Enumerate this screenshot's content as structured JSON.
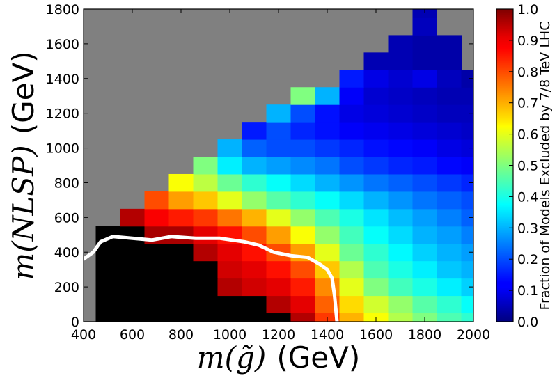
{
  "chart_data": {
    "type": "heatmap",
    "title": "",
    "xlabel": {
      "math": "m(g̃)",
      "unit": "(GeV)"
    },
    "ylabel": {
      "math": "m(NLSP)",
      "unit": "(GeV)"
    },
    "xlim": [
      400,
      2000
    ],
    "ylim": [
      0,
      1800
    ],
    "xticks": [
      "400",
      "600",
      "800",
      "1000",
      "1200",
      "1400",
      "1600",
      "1800",
      "2000"
    ],
    "yticks": [
      "0",
      "200",
      "400",
      "600",
      "800",
      "1000",
      "1200",
      "1400",
      "1600",
      "1800"
    ],
    "background_color": "#808080",
    "colormap": "jet",
    "colorbar": {
      "label": "Fraction of Models Excluded by 7/8 TeV LHC",
      "range": [
        0.0,
        1.0
      ],
      "ticks": [
        "0.0",
        "0.1",
        "0.2",
        "0.3",
        "0.4",
        "0.5",
        "0.6",
        "0.7",
        "0.8",
        "0.9",
        "1.0"
      ]
    },
    "fraction_grid": {
      "description_of_axes": "rows = m(NLSP) 0..1800 step 100, cols = m(g̃) 400..2000 step 100; null = no models",
      "m_nlsp": [
        0,
        100,
        200,
        300,
        400,
        500,
        600,
        700,
        800,
        900,
        1000,
        1100,
        1200,
        1300,
        1400,
        1500,
        1600,
        1700,
        1800
      ],
      "m_gluino": [
        400,
        500,
        600,
        700,
        800,
        900,
        1000,
        1100,
        1200,
        1300,
        1400,
        1500,
        1600,
        1700,
        1800,
        1900,
        2000
      ],
      "values": [
        [
          null,
          1.0,
          1.0,
          1.0,
          1.0,
          1.0,
          1.0,
          1.0,
          1.0,
          0.95,
          0.82,
          0.7,
          0.62,
          0.55,
          0.5,
          0.45,
          0.42
        ],
        [
          null,
          1.0,
          1.0,
          1.0,
          1.0,
          1.0,
          1.0,
          1.0,
          0.95,
          0.9,
          0.78,
          0.66,
          0.58,
          0.52,
          0.46,
          0.42,
          0.38
        ],
        [
          null,
          1.0,
          1.0,
          1.0,
          1.0,
          1.0,
          0.95,
          0.92,
          0.9,
          0.85,
          0.74,
          0.6,
          0.5,
          0.44,
          0.4,
          0.36,
          0.33
        ],
        [
          null,
          1.0,
          1.0,
          1.0,
          1.0,
          1.0,
          0.92,
          0.9,
          0.86,
          0.8,
          0.68,
          0.55,
          0.45,
          0.4,
          0.36,
          0.32,
          0.3
        ],
        [
          null,
          1.0,
          1.0,
          1.0,
          1.0,
          0.95,
          0.9,
          0.86,
          0.8,
          0.72,
          0.6,
          0.48,
          0.42,
          0.37,
          0.33,
          0.3,
          0.28
        ],
        [
          null,
          1.0,
          1.0,
          0.96,
          0.96,
          0.9,
          0.86,
          0.8,
          0.72,
          0.62,
          0.52,
          0.44,
          0.38,
          0.34,
          0.3,
          0.28,
          0.25
        ],
        [
          null,
          null,
          0.95,
          0.88,
          0.85,
          0.82,
          0.76,
          0.7,
          0.6,
          0.52,
          0.45,
          0.4,
          0.35,
          0.31,
          0.28,
          0.25,
          0.22
        ],
        [
          null,
          null,
          null,
          0.8,
          0.72,
          0.68,
          0.6,
          0.52,
          0.46,
          0.42,
          0.38,
          0.34,
          0.3,
          0.27,
          0.24,
          0.22,
          0.2
        ],
        [
          null,
          null,
          null,
          null,
          0.62,
          0.56,
          0.48,
          0.42,
          0.38,
          0.34,
          0.3,
          0.27,
          0.24,
          0.22,
          0.2,
          0.18,
          0.16
        ],
        [
          null,
          null,
          null,
          null,
          null,
          0.5,
          0.36,
          0.3,
          0.28,
          0.26,
          0.24,
          0.2,
          0.18,
          0.16,
          0.15,
          0.13,
          0.12
        ],
        [
          null,
          null,
          null,
          null,
          null,
          null,
          0.3,
          0.22,
          0.2,
          0.2,
          0.18,
          0.16,
          0.14,
          0.13,
          0.12,
          0.1,
          0.09
        ],
        [
          null,
          null,
          null,
          null,
          null,
          null,
          null,
          0.15,
          0.2,
          0.16,
          0.14,
          0.12,
          0.11,
          0.1,
          0.09,
          0.08,
          0.07
        ],
        [
          null,
          null,
          null,
          null,
          null,
          null,
          null,
          null,
          0.3,
          0.2,
          0.14,
          0.1,
          0.09,
          0.08,
          0.07,
          0.06,
          0.06
        ],
        [
          null,
          null,
          null,
          null,
          null,
          null,
          null,
          null,
          null,
          0.5,
          0.3,
          0.12,
          0.08,
          0.07,
          0.06,
          0.05,
          0.05
        ],
        [
          null,
          null,
          null,
          null,
          null,
          null,
          null,
          null,
          null,
          null,
          null,
          0.15,
          0.1,
          0.08,
          0.1,
          0.06,
          0.04
        ],
        [
          null,
          null,
          null,
          null,
          null,
          null,
          null,
          null,
          null,
          null,
          null,
          null,
          0.05,
          0.05,
          0.04,
          0.04,
          null
        ],
        [
          null,
          null,
          null,
          null,
          null,
          null,
          null,
          null,
          null,
          null,
          null,
          null,
          null,
          0.05,
          0.04,
          0.04,
          null
        ],
        [
          null,
          null,
          null,
          null,
          null,
          null,
          null,
          null,
          null,
          null,
          null,
          null,
          null,
          null,
          0.06,
          null,
          null
        ],
        [
          null,
          null,
          null,
          null,
          null,
          null,
          null,
          null,
          null,
          null,
          null,
          null,
          null,
          null,
          0.05,
          null,
          null
        ]
      ]
    },
    "exclusion_contour": {
      "color": "#ffffff",
      "points": [
        {
          "x": 400,
          "y": 360
        },
        {
          "x": 440,
          "y": 400
        },
        {
          "x": 470,
          "y": 460
        },
        {
          "x": 520,
          "y": 490
        },
        {
          "x": 600,
          "y": 480
        },
        {
          "x": 680,
          "y": 470
        },
        {
          "x": 760,
          "y": 490
        },
        {
          "x": 860,
          "y": 480
        },
        {
          "x": 960,
          "y": 480
        },
        {
          "x": 1060,
          "y": 460
        },
        {
          "x": 1120,
          "y": 440
        },
        {
          "x": 1180,
          "y": 400
        },
        {
          "x": 1250,
          "y": 380
        },
        {
          "x": 1320,
          "y": 370
        },
        {
          "x": 1370,
          "y": 330
        },
        {
          "x": 1400,
          "y": 300
        },
        {
          "x": 1420,
          "y": 250
        },
        {
          "x": 1430,
          "y": 150
        },
        {
          "x": 1440,
          "y": 0
        }
      ]
    }
  }
}
